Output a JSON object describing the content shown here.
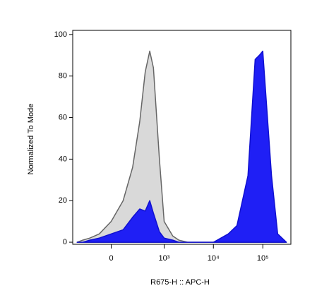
{
  "chart_data": {
    "type": "area",
    "xlabel": "R675-H :: APC-H",
    "ylabel": "Normalized To Mode",
    "xscale": "biexponential",
    "x": [
      -400,
      -300,
      -200,
      -100,
      0,
      100,
      200,
      300,
      400,
      500,
      600,
      800,
      1000,
      1500,
      2000,
      3000,
      5000,
      10000,
      20000,
      30000,
      50000,
      70000,
      85000,
      100000,
      150000,
      200000,
      300000
    ],
    "series": [
      {
        "color": "#d9d9d9",
        "edge": "#666666",
        "values": [
          0,
          1,
          2,
          4,
          10,
          20,
          36,
          58,
          82,
          92,
          84,
          40,
          10,
          3,
          1,
          0,
          0,
          0,
          0,
          0,
          0,
          0,
          0,
          0,
          0,
          0,
          0
        ]
      },
      {
        "color": "#1f1ff5",
        "edge": "#1010d0",
        "values": [
          0,
          0,
          1,
          2,
          4,
          6,
          12,
          16,
          15,
          20,
          14,
          5,
          2,
          1,
          0,
          0,
          0,
          0,
          4,
          8,
          32,
          88,
          90,
          92,
          32,
          4,
          0
        ]
      }
    ],
    "xlim": [
      -500,
      370000
    ],
    "ylim": [
      -1,
      102
    ],
    "xticks": [
      0,
      {
        "value": 1000,
        "label": "10³"
      },
      {
        "value": 10000,
        "label": "10⁴"
      },
      {
        "value": 100000,
        "label": "10⁵"
      }
    ],
    "yticks": [
      0,
      20,
      40,
      60,
      80,
      100
    ]
  }
}
